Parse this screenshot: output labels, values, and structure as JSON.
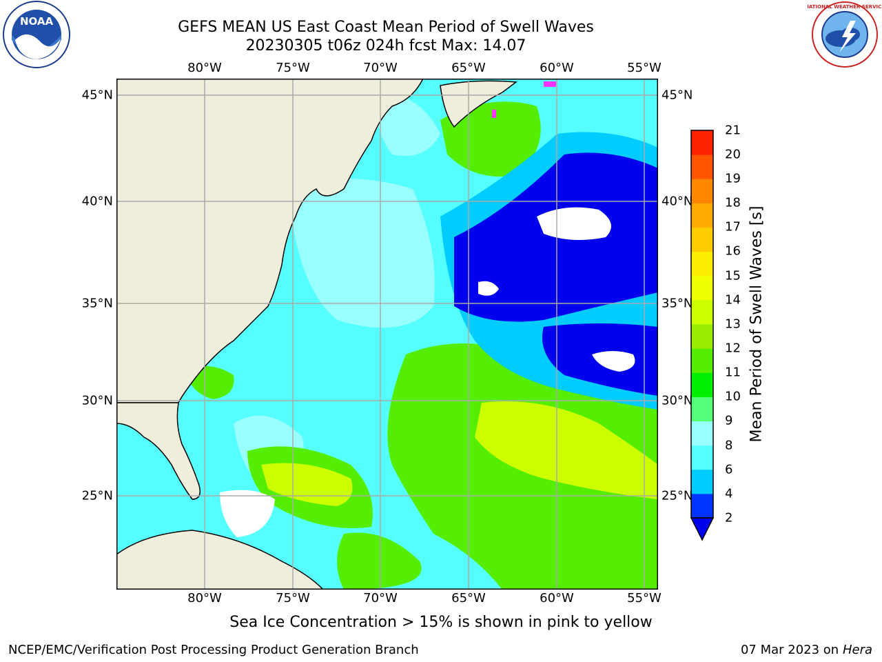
{
  "header": {
    "title_line1": "GEFS MEAN US East Coast Mean Period of Swell Waves",
    "title_line2": "20230305 t06z 024h fcst   Max: 14.07"
  },
  "map": {
    "lon_labels": [
      "80°W",
      "75°W",
      "70°W",
      "65°W",
      "60°W",
      "55°W"
    ],
    "lat_labels": [
      "45°N",
      "40°N",
      "35°N",
      "30°N",
      "25°N"
    ],
    "colors": {
      "land": "#efeedd",
      "ocean_base": "#55ffff",
      "no_data": "#ffffff",
      "grid": "#aaaaaa",
      "coast": "#000000",
      "ice": "#ff33ff"
    }
  },
  "colorbar": {
    "label": "Mean Period of Swell Waves [s]",
    "tick_labels": [
      "2",
      "4",
      "6",
      "8",
      "9",
      "10",
      "11",
      "12",
      "13",
      "14",
      "15",
      "16",
      "17",
      "18",
      "19",
      "20",
      "21"
    ],
    "colors": [
      "#0033ff",
      "#00ccff",
      "#55ffff",
      "#99ffff",
      "#55ff77",
      "#00ee00",
      "#55ee00",
      "#99ee00",
      "#ccff00",
      "#eeff00",
      "#ffee00",
      "#ffcc00",
      "#ffaa00",
      "#ff8800",
      "#ff5500",
      "#ff2200"
    ],
    "extend_color": "#0000ee"
  },
  "footnote": "Sea Ice Concentration > 15% is shown in pink to yellow",
  "footer": {
    "credit": "NCEP/EMC/Verification Post Processing Product Generation Branch",
    "date": "07 Mar 2023 on",
    "machine": "Hera"
  },
  "logos": {
    "noaa_text": "NOAA",
    "nws_text": "NATIONAL WEATHER SERVICE"
  }
}
